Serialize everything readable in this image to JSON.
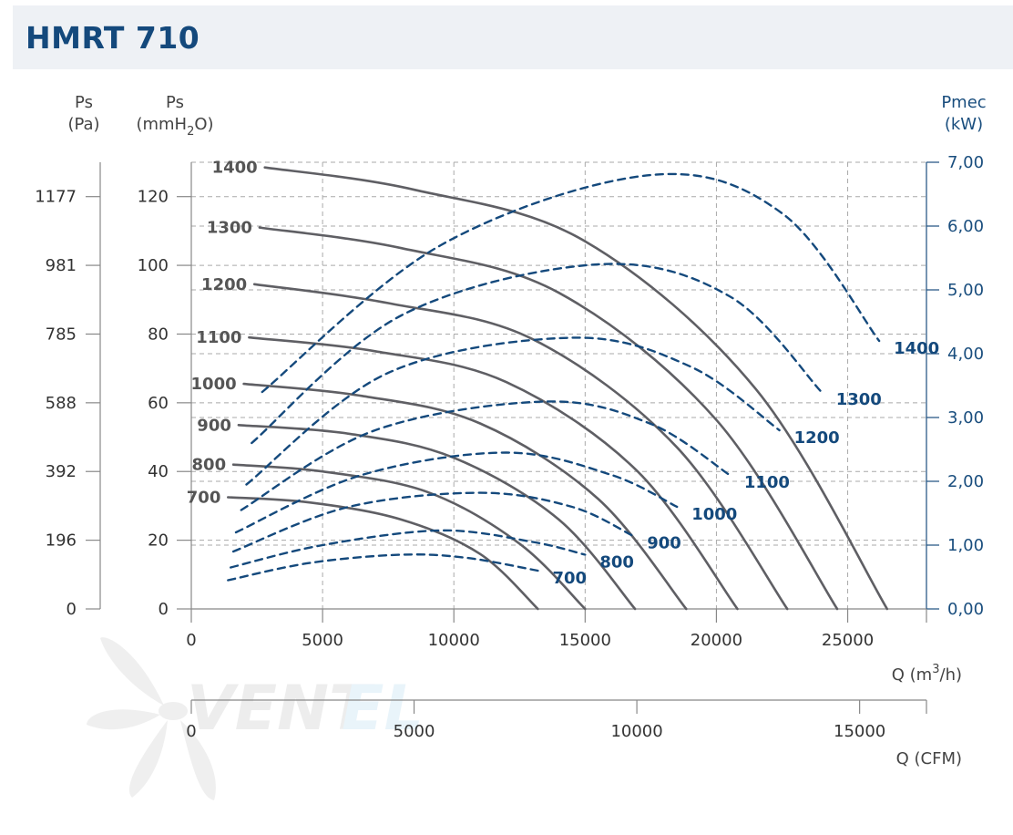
{
  "header": {
    "title": "HMRT 710"
  },
  "watermark": {
    "brand_1": "VENT",
    "brand_2": "EL"
  },
  "chart_data": {
    "type": "line",
    "title": "HMRT 710",
    "axes": {
      "pa": {
        "line1": "Ps",
        "line2": "(Pa)",
        "ticks": [
          "0",
          "196",
          "392",
          "588",
          "785",
          "981",
          "1177"
        ]
      },
      "mmh2o": {
        "line1": "Ps",
        "line2_pre": "(mmH",
        "line2_sub": "2",
        "line2_post": "O)",
        "ticks": [
          "0",
          "20",
          "40",
          "60",
          "80",
          "100",
          "120"
        ],
        "range": [
          0,
          130
        ]
      },
      "power": {
        "line1": "Pmec",
        "line2": "(kW)",
        "ticks": [
          "0,00",
          "1,00",
          "2,00",
          "3,00",
          "4,00",
          "5,00",
          "6,00",
          "7,00"
        ],
        "range": [
          0,
          7
        ]
      },
      "q_m3h": {
        "label_pre": "Q (m",
        "label_sup": "3",
        "label_post": "/h)",
        "ticks": [
          "0",
          "5000",
          "10000",
          "15000",
          "20000",
          "25000"
        ],
        "range": [
          0,
          28000
        ]
      },
      "q_cfm": {
        "label": "Q (CFM)",
        "ticks": [
          "0",
          "5000",
          "10000",
          "15000"
        ],
        "range": [
          0,
          16500
        ]
      }
    },
    "pressure_series": [
      {
        "name": "700",
        "points": [
          [
            1400,
            32.5
          ],
          [
            4500,
            31
          ],
          [
            8000,
            26
          ],
          [
            11000,
            16
          ],
          [
            13200,
            0
          ]
        ]
      },
      {
        "name": "800",
        "points": [
          [
            1600,
            42
          ],
          [
            5000,
            40
          ],
          [
            9000,
            34
          ],
          [
            12500,
            19
          ],
          [
            15000,
            0
          ]
        ]
      },
      {
        "name": "900",
        "points": [
          [
            1800,
            53.5
          ],
          [
            6000,
            51
          ],
          [
            10000,
            44
          ],
          [
            14000,
            26
          ],
          [
            16900,
            0
          ]
        ]
      },
      {
        "name": "1000",
        "points": [
          [
            2000,
            65.5
          ],
          [
            6500,
            62
          ],
          [
            11000,
            54
          ],
          [
            15500,
            32
          ],
          [
            18850,
            0
          ]
        ]
      },
      {
        "name": "1100",
        "points": [
          [
            2200,
            79
          ],
          [
            7000,
            75
          ],
          [
            12000,
            66
          ],
          [
            17000,
            40
          ],
          [
            20800,
            0
          ]
        ]
      },
      {
        "name": "1200",
        "points": [
          [
            2400,
            94.5
          ],
          [
            7500,
            89
          ],
          [
            13000,
            78.5
          ],
          [
            18500,
            47
          ],
          [
            22700,
            0
          ]
        ]
      },
      {
        "name": "1300",
        "points": [
          [
            2600,
            111
          ],
          [
            8000,
            105
          ],
          [
            14000,
            92
          ],
          [
            20000,
            55
          ],
          [
            24600,
            0
          ]
        ]
      },
      {
        "name": "1400",
        "points": [
          [
            2800,
            128.5
          ],
          [
            8500,
            122
          ],
          [
            15000,
            107
          ],
          [
            21500,
            64
          ],
          [
            26500,
            0
          ]
        ]
      }
    ],
    "power_series": [
      {
        "name": "700",
        "points": [
          [
            1400,
            0.45
          ],
          [
            4500,
            0.72
          ],
          [
            8000,
            0.85
          ],
          [
            10500,
            0.8
          ],
          [
            13200,
            0.6
          ]
        ]
      },
      {
        "name": "800",
        "points": [
          [
            1500,
            0.65
          ],
          [
            5000,
            1.0
          ],
          [
            9500,
            1.23
          ],
          [
            13000,
            1.05
          ],
          [
            15000,
            0.85
          ]
        ]
      },
      {
        "name": "900",
        "points": [
          [
            1600,
            0.9
          ],
          [
            6000,
            1.6
          ],
          [
            11000,
            1.82
          ],
          [
            14500,
            1.6
          ],
          [
            16800,
            1.15
          ]
        ]
      },
      {
        "name": "1000",
        "points": [
          [
            1700,
            1.2
          ],
          [
            6500,
            2.1
          ],
          [
            12000,
            2.45
          ],
          [
            16000,
            2.1
          ],
          [
            18500,
            1.6
          ]
        ]
      },
      {
        "name": "1100",
        "points": [
          [
            1900,
            1.55
          ],
          [
            7000,
            2.8
          ],
          [
            13500,
            3.25
          ],
          [
            17500,
            2.9
          ],
          [
            20500,
            2.1
          ]
        ]
      },
      {
        "name": "1200",
        "points": [
          [
            2100,
            1.95
          ],
          [
            7500,
            3.7
          ],
          [
            14500,
            4.25
          ],
          [
            19000,
            3.8
          ],
          [
            22400,
            2.8
          ]
        ]
      },
      {
        "name": "1300",
        "points": [
          [
            2300,
            2.6
          ],
          [
            8000,
            4.6
          ],
          [
            15500,
            5.4
          ],
          [
            20500,
            4.9
          ],
          [
            24000,
            3.4
          ]
        ]
      },
      {
        "name": "1400",
        "points": [
          [
            2700,
            3.4
          ],
          [
            9500,
            5.7
          ],
          [
            17500,
            6.8
          ],
          [
            22500,
            6.2
          ],
          [
            26200,
            4.2
          ]
        ]
      }
    ]
  }
}
